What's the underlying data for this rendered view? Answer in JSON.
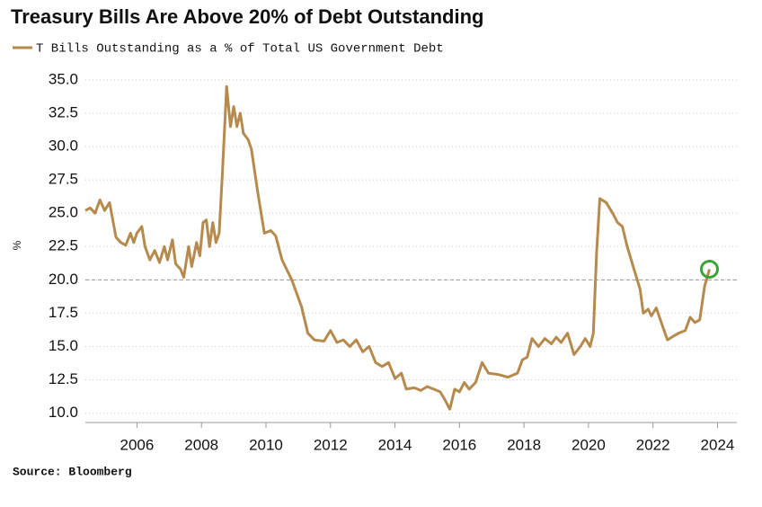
{
  "chart_data": {
    "type": "line",
    "title": "Treasury Bills Are Above 20% of Debt Outstanding",
    "y_label": "%",
    "source": "Source: Bloomberg",
    "x": [
      2004.4,
      2004.55,
      2004.7,
      2004.85,
      2005.0,
      2005.15,
      2005.25,
      2005.35,
      2005.5,
      2005.65,
      2005.8,
      2005.9,
      2006.0,
      2006.15,
      2006.25,
      2006.4,
      2006.55,
      2006.7,
      2006.85,
      2006.95,
      2007.1,
      2007.2,
      2007.35,
      2007.45,
      2007.6,
      2007.7,
      2007.85,
      2007.95,
      2008.05,
      2008.15,
      2008.25,
      2008.35,
      2008.45,
      2008.55,
      2008.65,
      2008.78,
      2008.9,
      2009.0,
      2009.1,
      2009.2,
      2009.3,
      2009.45,
      2009.55,
      2009.75,
      2009.95,
      2010.15,
      2010.3,
      2010.5,
      2010.8,
      2011.1,
      2011.3,
      2011.5,
      2011.8,
      2012.0,
      2012.2,
      2012.4,
      2012.6,
      2012.8,
      2013.0,
      2013.2,
      2013.4,
      2013.6,
      2013.8,
      2014.0,
      2014.2,
      2014.35,
      2014.6,
      2014.8,
      2015.0,
      2015.2,
      2015.4,
      2015.55,
      2015.7,
      2015.85,
      2016.0,
      2016.15,
      2016.3,
      2016.5,
      2016.7,
      2016.9,
      2017.2,
      2017.5,
      2017.8,
      2017.95,
      2018.1,
      2018.25,
      2018.45,
      2018.65,
      2018.85,
      2019.0,
      2019.15,
      2019.35,
      2019.55,
      2019.75,
      2019.9,
      2020.05,
      2020.15,
      2020.25,
      2020.35,
      2020.55,
      2020.75,
      2020.9,
      2021.05,
      2021.2,
      2021.45,
      2021.6,
      2021.7,
      2021.85,
      2021.95,
      2022.1,
      2022.3,
      2022.45,
      2022.65,
      2022.8,
      2023.0,
      2023.15,
      2023.3,
      2023.45,
      2023.6,
      2023.75
    ],
    "series": [
      {
        "name": "T Bills Outstanding as a % of Total US Government Debt",
        "color": "#b58a4c",
        "values": [
          25.2,
          25.4,
          25.0,
          26.0,
          25.2,
          25.8,
          24.5,
          23.2,
          22.8,
          22.6,
          23.5,
          22.8,
          23.5,
          24.0,
          22.5,
          21.5,
          22.2,
          21.3,
          22.5,
          21.5,
          23.0,
          21.2,
          20.8,
          20.2,
          22.5,
          21.0,
          22.8,
          21.8,
          24.3,
          24.5,
          22.5,
          24.3,
          22.8,
          23.5,
          28.0,
          34.5,
          31.5,
          33.0,
          31.5,
          32.5,
          31.0,
          30.5,
          29.8,
          26.5,
          23.5,
          23.7,
          23.3,
          21.5,
          20.0,
          18.0,
          16.0,
          15.5,
          15.4,
          16.2,
          15.3,
          15.5,
          15.0,
          15.5,
          14.6,
          15.0,
          13.8,
          13.5,
          13.8,
          12.6,
          13.0,
          11.8,
          11.9,
          11.7,
          12.0,
          11.8,
          11.6,
          11.0,
          10.3,
          11.8,
          11.6,
          12.3,
          11.8,
          12.3,
          13.8,
          13.0,
          12.9,
          12.7,
          13.0,
          14.0,
          14.2,
          15.6,
          15.0,
          15.6,
          15.2,
          15.7,
          15.3,
          16.0,
          14.4,
          15.0,
          15.6,
          15.0,
          16.0,
          22.0,
          26.1,
          25.8,
          25.0,
          24.3,
          24.0,
          22.5,
          20.5,
          19.3,
          17.5,
          17.8,
          17.3,
          17.9,
          16.5,
          15.5,
          15.8,
          16.0,
          16.2,
          17.2,
          16.8,
          17.0,
          19.5,
          20.8
        ]
      }
    ],
    "reference_y": 20,
    "highlight_color": "#3aa335",
    "xlim": [
      2004.4,
      2024.6
    ],
    "xticks": [
      2006,
      2008,
      2010,
      2012,
      2014,
      2016,
      2018,
      2020,
      2022,
      2024
    ],
    "ylim": [
      9.3,
      35.6
    ],
    "yticks": [
      {
        "value": 10,
        "label": "10.0"
      },
      {
        "value": 12.5,
        "label": "12.5"
      },
      {
        "value": 15,
        "label": "15.0"
      },
      {
        "value": 17.5,
        "label": "17.5"
      },
      {
        "value": 20,
        "label": "20.0"
      },
      {
        "value": 22.5,
        "label": "22.5"
      },
      {
        "value": 25,
        "label": "25.0"
      },
      {
        "value": 27.5,
        "label": "27.5"
      },
      {
        "value": 30,
        "label": "30.0"
      },
      {
        "value": 32.5,
        "label": "32.5"
      },
      {
        "value": 35,
        "label": "35.0"
      }
    ],
    "grid": true
  }
}
